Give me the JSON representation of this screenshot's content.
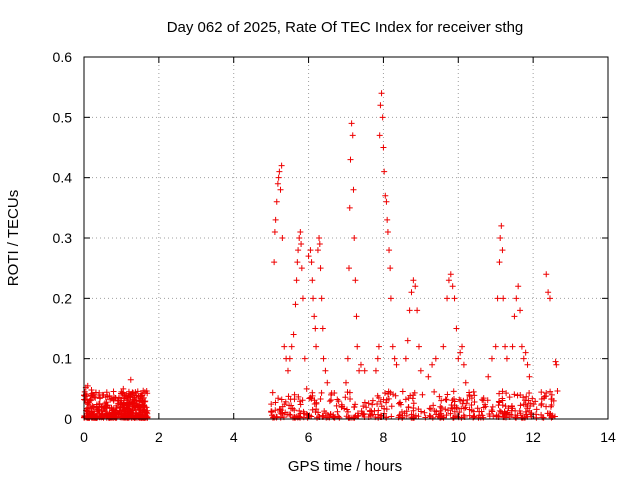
{
  "chart_data": {
    "type": "scatter",
    "title": "Day 062 of 2025, Rate Of TEC Index for receiver sthg",
    "xlabel": "GPS time / hours",
    "ylabel": "ROTI / TECUs",
    "xlim": [
      0,
      14
    ],
    "ylim": [
      0,
      0.6
    ],
    "x_ticks": [
      0,
      2,
      4,
      6,
      8,
      10,
      12,
      14
    ],
    "y_ticks": [
      0,
      0.1,
      0.2,
      0.3,
      0.4,
      0.5,
      0.6
    ],
    "x_tick_labels": [
      "0",
      "2",
      "4",
      "6",
      "8",
      "10",
      "12",
      "14"
    ],
    "y_tick_labels": [
      "0",
      "0.1",
      "0.2",
      "0.3",
      "0.4",
      "0.5",
      "0.6"
    ],
    "grid": true,
    "marker": "plus",
    "color": "#ee0000",
    "series": [
      {
        "name": "ROTI",
        "points": [
          [
            0.02,
            0.045
          ],
          [
            0.05,
            0.052
          ],
          [
            0.08,
            0.038
          ],
          [
            0.1,
            0.055
          ],
          [
            0.15,
            0.03
          ],
          [
            0.2,
            0.048
          ],
          [
            0.25,
            0.02
          ],
          [
            0.3,
            0.035
          ],
          [
            0.4,
            0.025
          ],
          [
            0.5,
            0.04
          ],
          [
            0.6,
            0.028
          ],
          [
            0.7,
            0.032
          ],
          [
            0.8,
            0.036
          ],
          [
            0.9,
            0.03
          ],
          [
            1.0,
            0.045
          ],
          [
            1.05,
            0.05
          ],
          [
            1.1,
            0.038
          ],
          [
            1.2,
            0.042
          ],
          [
            1.25,
            0.065
          ],
          [
            1.3,
            0.03
          ],
          [
            1.4,
            0.025
          ],
          [
            1.5,
            0.02
          ],
          [
            1.6,
            0.015
          ],
          [
            1.65,
            0.012
          ],
          [
            5.08,
            0.26
          ],
          [
            5.1,
            0.31
          ],
          [
            5.12,
            0.33
          ],
          [
            5.15,
            0.36
          ],
          [
            5.18,
            0.39
          ],
          [
            5.2,
            0.4
          ],
          [
            5.22,
            0.41
          ],
          [
            5.25,
            0.38
          ],
          [
            5.28,
            0.42
          ],
          [
            5.3,
            0.3
          ],
          [
            5.35,
            0.12
          ],
          [
            5.4,
            0.1
          ],
          [
            5.45,
            0.08
          ],
          [
            5.5,
            0.1
          ],
          [
            5.55,
            0.12
          ],
          [
            5.6,
            0.14
          ],
          [
            5.65,
            0.19
          ],
          [
            5.68,
            0.23
          ],
          [
            5.7,
            0.26
          ],
          [
            5.72,
            0.28
          ],
          [
            5.75,
            0.3
          ],
          [
            5.78,
            0.31
          ],
          [
            5.8,
            0.29
          ],
          [
            5.82,
            0.25
          ],
          [
            5.85,
            0.2
          ],
          [
            5.9,
            0.1
          ],
          [
            5.95,
            0.05
          ],
          [
            6.0,
            0.27
          ],
          [
            6.05,
            0.28
          ],
          [
            6.08,
            0.26
          ],
          [
            6.1,
            0.23
          ],
          [
            6.12,
            0.2
          ],
          [
            6.15,
            0.17
          ],
          [
            6.18,
            0.15
          ],
          [
            6.2,
            0.12
          ],
          [
            6.25,
            0.28
          ],
          [
            6.28,
            0.3
          ],
          [
            6.3,
            0.29
          ],
          [
            6.32,
            0.25
          ],
          [
            6.35,
            0.2
          ],
          [
            6.38,
            0.15
          ],
          [
            6.4,
            0.1
          ],
          [
            6.45,
            0.08
          ],
          [
            6.5,
            0.06
          ],
          [
            6.6,
            0.04
          ],
          [
            7.0,
            0.06
          ],
          [
            7.05,
            0.1
          ],
          [
            7.08,
            0.25
          ],
          [
            7.1,
            0.35
          ],
          [
            7.12,
            0.43
          ],
          [
            7.15,
            0.49
          ],
          [
            7.18,
            0.47
          ],
          [
            7.2,
            0.38
          ],
          [
            7.22,
            0.3
          ],
          [
            7.25,
            0.23
          ],
          [
            7.28,
            0.17
          ],
          [
            7.3,
            0.12
          ],
          [
            7.35,
            0.08
          ],
          [
            7.4,
            0.09
          ],
          [
            7.5,
            0.08
          ],
          [
            7.8,
            0.08
          ],
          [
            7.85,
            0.1
          ],
          [
            7.88,
            0.12
          ],
          [
            7.9,
            0.47
          ],
          [
            7.92,
            0.52
          ],
          [
            7.95,
            0.54
          ],
          [
            7.98,
            0.5
          ],
          [
            8.0,
            0.45
          ],
          [
            8.02,
            0.41
          ],
          [
            8.05,
            0.37
          ],
          [
            8.08,
            0.36
          ],
          [
            8.1,
            0.33
          ],
          [
            8.12,
            0.31
          ],
          [
            8.15,
            0.28
          ],
          [
            8.18,
            0.25
          ],
          [
            8.2,
            0.2
          ],
          [
            8.25,
            0.12
          ],
          [
            8.3,
            0.1
          ],
          [
            8.35,
            0.09
          ],
          [
            8.6,
            0.1
          ],
          [
            8.65,
            0.13
          ],
          [
            8.7,
            0.18
          ],
          [
            8.75,
            0.21
          ],
          [
            8.8,
            0.23
          ],
          [
            8.85,
            0.22
          ],
          [
            8.9,
            0.18
          ],
          [
            8.95,
            0.12
          ],
          [
            9.0,
            0.08
          ],
          [
            9.2,
            0.07
          ],
          [
            9.3,
            0.09
          ],
          [
            9.4,
            0.1
          ],
          [
            9.6,
            0.12
          ],
          [
            9.7,
            0.2
          ],
          [
            9.75,
            0.23
          ],
          [
            9.8,
            0.24
          ],
          [
            9.85,
            0.22
          ],
          [
            9.9,
            0.2
          ],
          [
            9.95,
            0.15
          ],
          [
            10.0,
            0.1
          ],
          [
            10.05,
            0.11
          ],
          [
            10.1,
            0.12
          ],
          [
            10.15,
            0.09
          ],
          [
            10.2,
            0.06
          ],
          [
            10.8,
            0.07
          ],
          [
            10.9,
            0.1
          ],
          [
            11.0,
            0.12
          ],
          [
            11.05,
            0.2
          ],
          [
            11.1,
            0.26
          ],
          [
            11.12,
            0.3
          ],
          [
            11.15,
            0.32
          ],
          [
            11.18,
            0.28
          ],
          [
            11.2,
            0.2
          ],
          [
            11.25,
            0.12
          ],
          [
            11.3,
            0.1
          ],
          [
            11.45,
            0.12
          ],
          [
            11.5,
            0.17
          ],
          [
            11.55,
            0.2
          ],
          [
            11.6,
            0.22
          ],
          [
            11.65,
            0.18
          ],
          [
            11.7,
            0.12
          ],
          [
            11.75,
            0.1
          ],
          [
            11.8,
            0.11
          ],
          [
            11.85,
            0.09
          ],
          [
            11.9,
            0.07
          ],
          [
            12.35,
            0.24
          ],
          [
            12.4,
            0.21
          ],
          [
            12.45,
            0.2
          ],
          [
            12.5,
            0.04
          ],
          [
            12.55,
            0.03
          ],
          [
            12.6,
            0.095
          ],
          [
            12.62,
            0.09
          ]
        ]
      }
    ]
  }
}
